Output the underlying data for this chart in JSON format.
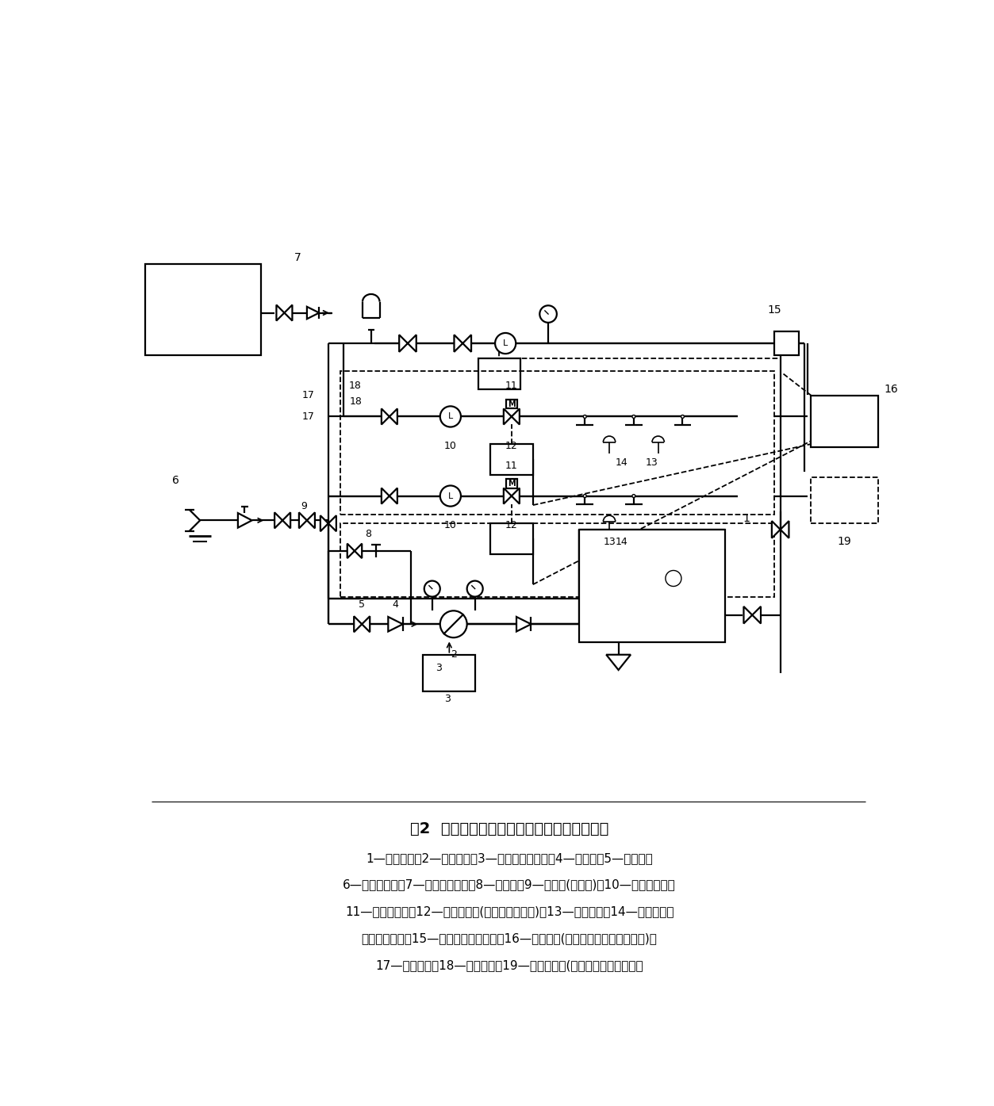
{
  "title": "图2  喷洒型自动射流灭火系统基本组成示意图",
  "caption_lines": [
    "1—消防水池；2—消防水泵；3—消防水泵控制柜；4—止回阀；5—手动阀；",
    "6—水泵接合器；7—高位消防水箱；8—泄压阀；9—检修阀(信号阀)；10—水流指示器；",
    "11—控制模块箱；12—自动控制阀(电磁阀或电动阀)；13—探测装置；14—喷洒型自动",
    "射流灭火装置；15—模拟末端试水装置；16—控制装置(控制主机、现场控制箱等)；",
    "17—供水管网；18—供水支管；19—联动控制器(或自动报警系统主机）"
  ],
  "lw": 1.6,
  "dlw": 1.3
}
